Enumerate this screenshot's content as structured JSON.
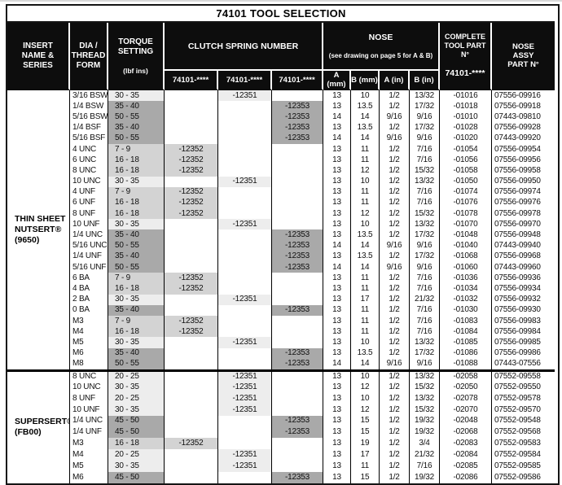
{
  "title": "74101 TOOL SELECTION",
  "colors": {
    "header_bg": "#0d0d0d",
    "header_text": "#ffffff",
    "border": "#141414",
    "shade_light": "#ededed",
    "shade_mid": "#d3d3d3",
    "shade_dark": "#a9a9a9"
  },
  "header": {
    "insert": "INSERT\nNAME &\nSERIES",
    "dia": "DIA /\nTHREAD\nFORM",
    "torque": "TORQUE\nSETTING",
    "torque_unit": "(lbf ins)",
    "clutch_group": "CLUTCH SPRING NUMBER",
    "clutch_sub": [
      "74101-****",
      "74101-****",
      "74101-****"
    ],
    "nose_group": "NOSE",
    "nose_note": "(see drawing on page 5 for A & B)",
    "nose_sub": [
      "A (mm)",
      "B (mm)",
      "A (in)",
      "B (in)"
    ],
    "tool": "COMPLETE\nTOOL PART N°",
    "tool_sub": "74101-****",
    "assy": "NOSE\nASSY\nPART N°"
  },
  "sections": [
    {
      "name": "THIN SHEET\nNUTSERT®\n(9650)",
      "rows": [
        [
          "3/16 BSW",
          "30 - 35",
          "",
          "-12351",
          "",
          "13",
          "10",
          "1/2",
          "13/32",
          "-01016",
          "07556-09916"
        ],
        [
          "1/4 BSW",
          "35 - 40",
          "",
          "",
          "-12353",
          "13",
          "13.5",
          "1/2",
          "17/32",
          "-01018",
          "07556-09918"
        ],
        [
          "5/16 BSW",
          "50 - 55",
          "",
          "",
          "-12353",
          "14",
          "14",
          "9/16",
          "9/16",
          "-01010",
          "07443-09810"
        ],
        [
          "1/4 BSF",
          "35 - 40",
          "",
          "",
          "-12353",
          "13",
          "13.5",
          "1/2",
          "17/32",
          "-01028",
          "07556-09928"
        ],
        [
          "5/16 BSF",
          "50 - 55",
          "",
          "",
          "-12353",
          "14",
          "14",
          "9/16",
          "9/16",
          "-01020",
          "07443-09920"
        ],
        [
          "4 UNC",
          "7 - 9",
          "-12352",
          "",
          "",
          "13",
          "11",
          "1/2",
          "7/16",
          "-01054",
          "07556-09954"
        ],
        [
          "6 UNC",
          "16 - 18",
          "-12352",
          "",
          "",
          "13",
          "11",
          "1/2",
          "7/16",
          "-01056",
          "07556-09956"
        ],
        [
          "8 UNC",
          "16 - 18",
          "-12352",
          "",
          "",
          "13",
          "12",
          "1/2",
          "15/32",
          "-01058",
          "07556-09958"
        ],
        [
          "10 UNC",
          "30 - 35",
          "",
          "-12351",
          "",
          "13",
          "10",
          "1/2",
          "13/32",
          "-01050",
          "07556-09950"
        ],
        [
          "4 UNF",
          "7 - 9",
          "-12352",
          "",
          "",
          "13",
          "11",
          "1/2",
          "7/16",
          "-01074",
          "07556-09974"
        ],
        [
          "6 UNF",
          "16 - 18",
          "-12352",
          "",
          "",
          "13",
          "11",
          "1/2",
          "7/16",
          "-01076",
          "07556-09976"
        ],
        [
          "8 UNF",
          "16 - 18",
          "-12352",
          "",
          "",
          "13",
          "12",
          "1/2",
          "15/32",
          "-01078",
          "07556-09978"
        ],
        [
          "10 UNF",
          "30 - 35",
          "",
          "-12351",
          "",
          "13",
          "10",
          "1/2",
          "13/32",
          "-01070",
          "07556-09970"
        ],
        [
          "1/4 UNC",
          "35 - 40",
          "",
          "",
          "-12353",
          "13",
          "13.5",
          "1/2",
          "17/32",
          "-01048",
          "07556-09948"
        ],
        [
          "5/16 UNC",
          "50 - 55",
          "",
          "",
          "-12353",
          "14",
          "14",
          "9/16",
          "9/16",
          "-01040",
          "07443-09940"
        ],
        [
          "1/4 UNF",
          "35 - 40",
          "",
          "",
          "-12353",
          "13",
          "13.5",
          "1/2",
          "17/32",
          "-01068",
          "07556-09968"
        ],
        [
          "5/16 UNF",
          "50 - 55",
          "",
          "",
          "-12353",
          "14",
          "14",
          "9/16",
          "9/16",
          "-01060",
          "07443-09960"
        ],
        [
          "6 BA",
          "7 - 9",
          "-12352",
          "",
          "",
          "13",
          "11",
          "1/2",
          "7/16",
          "-01036",
          "07556-09936"
        ],
        [
          "4 BA",
          "16 - 18",
          "-12352",
          "",
          "",
          "13",
          "11",
          "1/2",
          "7/16",
          "-01034",
          "07556-09934"
        ],
        [
          "2 BA",
          "30 - 35",
          "",
          "-12351",
          "",
          "13",
          "17",
          "1/2",
          "21/32",
          "-01032",
          "07556-09932"
        ],
        [
          "0 BA",
          "35 - 40",
          "",
          "",
          "-12353",
          "13",
          "11",
          "1/2",
          "7/16",
          "-01030",
          "07556-09930"
        ],
        [
          "M3",
          "7 - 9",
          "-12352",
          "",
          "",
          "13",
          "11",
          "1/2",
          "7/16",
          "-01083",
          "07556-09983"
        ],
        [
          "M4",
          "16 - 18",
          "-12352",
          "",
          "",
          "13",
          "11",
          "1/2",
          "7/16",
          "-01084",
          "07556-09984"
        ],
        [
          "M5",
          "30 - 35",
          "",
          "-12351",
          "",
          "13",
          "10",
          "1/2",
          "13/32",
          "-01085",
          "07556-09985"
        ],
        [
          "M6",
          "35 - 40",
          "",
          "",
          "-12353",
          "13",
          "13.5",
          "1/2",
          "17/32",
          "-01086",
          "07556-09986"
        ],
        [
          "M8",
          "50 - 55",
          "",
          "",
          "-12353",
          "14",
          "14",
          "9/16",
          "9/16",
          "-01088",
          "07443-07556"
        ]
      ]
    },
    {
      "name": "SUPERSERT®\n(FB00)",
      "rows": [
        [
          "8 UNC",
          "20 - 25",
          "",
          "-12351",
          "",
          "13",
          "10",
          "1/2",
          "13/32",
          "-02058",
          "07552-09558"
        ],
        [
          "10 UNC",
          "30 - 35",
          "",
          "-12351",
          "",
          "13",
          "12",
          "1/2",
          "15/32",
          "-02050",
          "07552-09550"
        ],
        [
          "8 UNF",
          "20 - 25",
          "",
          "-12351",
          "",
          "13",
          "10",
          "1/2",
          "13/32",
          "-02078",
          "07552-09578"
        ],
        [
          "10 UNF",
          "30 - 35",
          "",
          "-12351",
          "",
          "13",
          "12",
          "1/2",
          "15/32",
          "-02070",
          "07552-09570"
        ],
        [
          "1/4 UNC",
          "45 - 50",
          "",
          "",
          "-12353",
          "13",
          "15",
          "1/2",
          "19/32",
          "-02048",
          "07552-09548"
        ],
        [
          "1/4 UNF",
          "45 - 50",
          "",
          "",
          "-12353",
          "13",
          "15",
          "1/2",
          "19/32",
          "-02068",
          "07552-09568"
        ],
        [
          "M3",
          "16 - 18",
          "-12352",
          "",
          "",
          "13",
          "19",
          "1/2",
          "3/4",
          "-02083",
          "07552-09583"
        ],
        [
          "M4",
          "20 - 25",
          "",
          "-12351",
          "",
          "13",
          "17",
          "1/2",
          "21/32",
          "-02084",
          "07552-09584"
        ],
        [
          "M5",
          "30 - 35",
          "",
          "-12351",
          "",
          "13",
          "11",
          "1/2",
          "7/16",
          "-02085",
          "07552-09585"
        ],
        [
          "M6",
          "45 - 50",
          "",
          "",
          "-12353",
          "13",
          "15",
          "1/2",
          "19/32",
          "-02086",
          "07552-09586"
        ]
      ]
    }
  ]
}
